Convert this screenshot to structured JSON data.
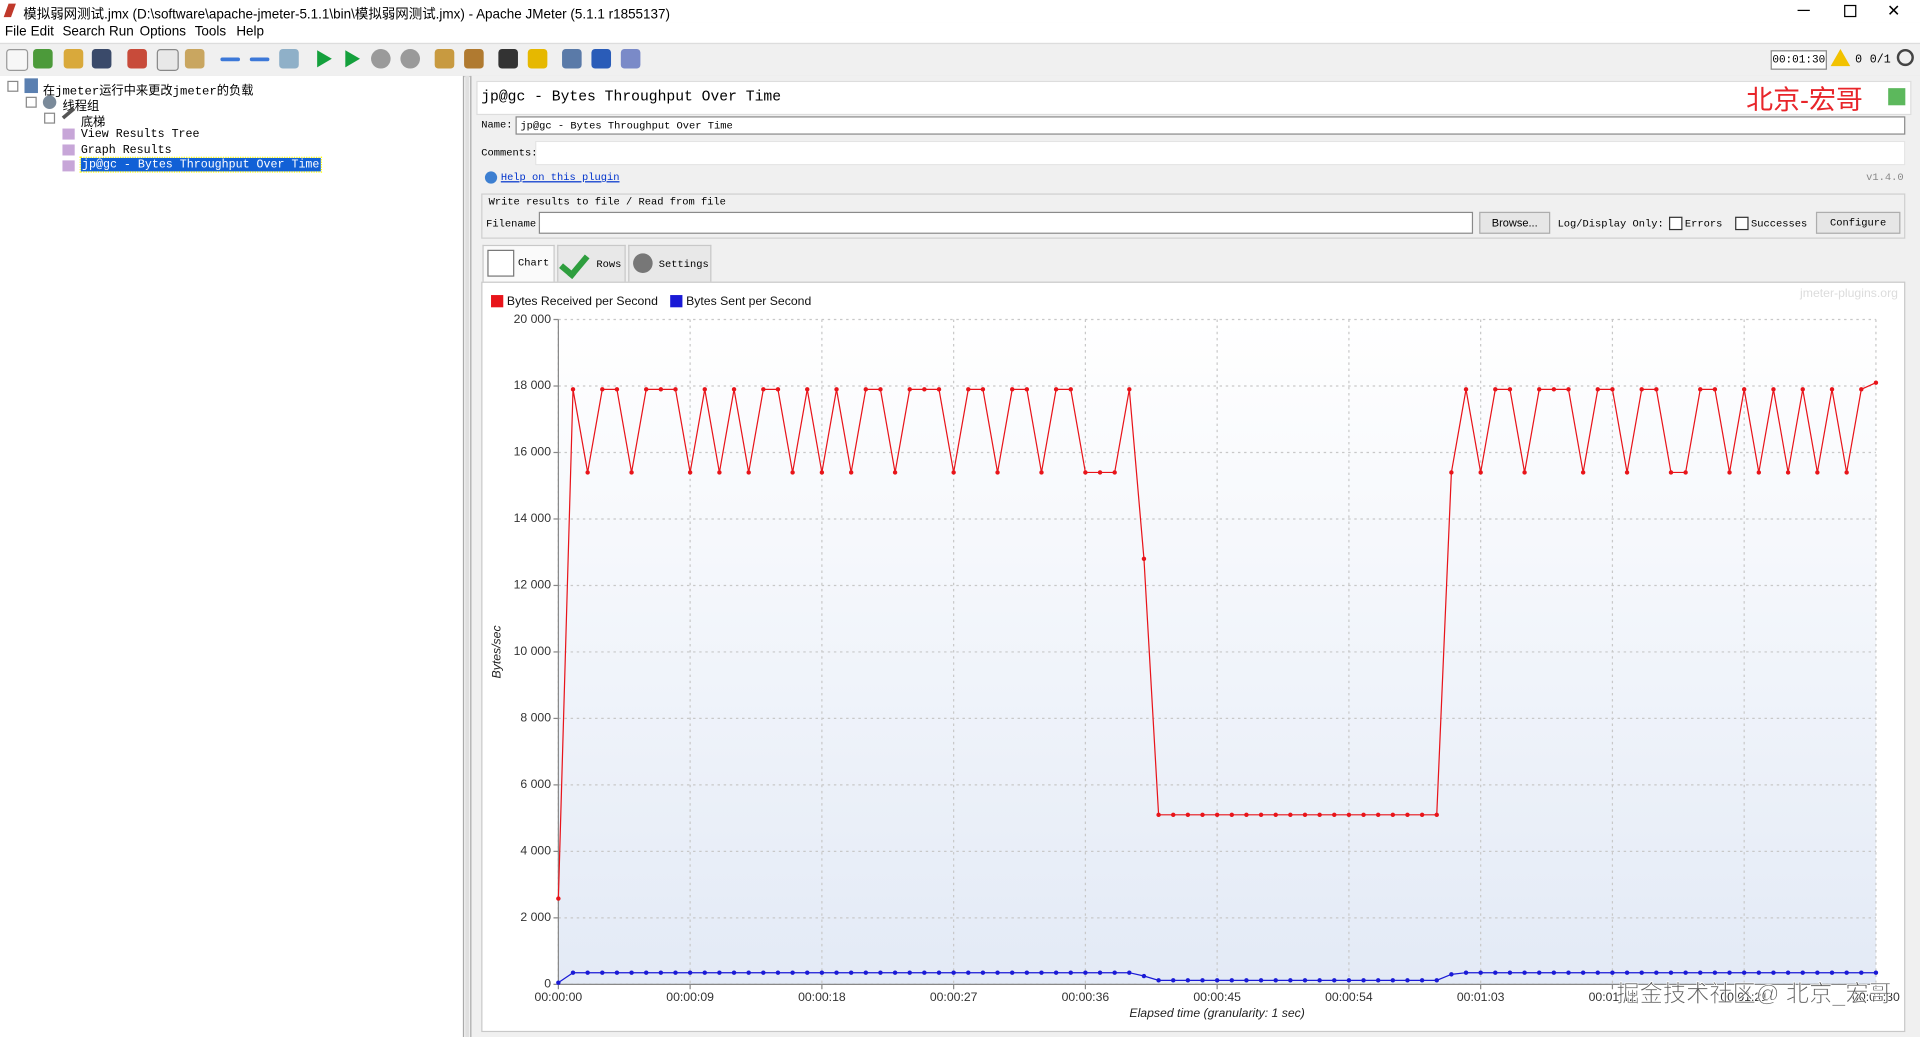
{
  "window": {
    "title": "模拟弱网测试.jmx (D:\\software\\apache-jmeter-5.1.1\\bin\\模拟弱网测试.jmx) - Apache JMeter (5.1.1 r1855137)",
    "menu": [
      "File",
      "Edit",
      "Search",
      "Run",
      "Options",
      "Tools",
      "Help"
    ]
  },
  "toolbar": {
    "timer": "00:01:30",
    "warnings": "0",
    "threads": "0/1"
  },
  "tree": {
    "items": [
      "在jmeter运行中来更改jmeter的负载",
      "线程组",
      "底梯",
      "View Results Tree",
      "Graph Results",
      "jp@gc - Bytes Throughput Over Time"
    ]
  },
  "panel": {
    "title": "jp@gc - Bytes Throughput Over Time",
    "watermark": "北京-宏哥",
    "name_label": "Name:",
    "name_value": "jp@gc - Bytes Throughput Over Time",
    "comments_label": "Comments:",
    "help_link": "Help on this plugin",
    "version": "v1.4.0",
    "file_section": "Write results to file / Read from file",
    "filename_label": "Filename",
    "browse": "Browse...",
    "log_display": "Log/Display Only:",
    "errors": "Errors",
    "successes": "Successes",
    "configure": "Configure",
    "tabs": [
      "Chart",
      "Rows",
      "Settings"
    ]
  },
  "chart_data": {
    "type": "line",
    "x_label": "Elapsed time (granularity: 1 sec)",
    "y_label": "Bytes/sec",
    "credit": "jmeter-plugins.org",
    "watermark": "掘金技术社区@ 北京_宏哥",
    "grid": true,
    "x": [
      0,
      1,
      2,
      3,
      4,
      5,
      6,
      7,
      8,
      9,
      10,
      11,
      12,
      13,
      14,
      15,
      16,
      17,
      18,
      19,
      20,
      21,
      22,
      23,
      24,
      25,
      26,
      27,
      28,
      29,
      30,
      31,
      32,
      33,
      34,
      35,
      36,
      37,
      38,
      39,
      40,
      41,
      42,
      43,
      44,
      45,
      46,
      47,
      48,
      49,
      50,
      51,
      52,
      53,
      54,
      55,
      56,
      57,
      58,
      59,
      60,
      61,
      62,
      63,
      64,
      65,
      66,
      67,
      68,
      69,
      70,
      71,
      72,
      73,
      74,
      75,
      76,
      77,
      78,
      79,
      80,
      81,
      82,
      83,
      84,
      85,
      86,
      87,
      88,
      89,
      90
    ],
    "series": [
      {
        "name": "Bytes Received per Second",
        "color": "#e8141a",
        "values": [
          2580,
          17900,
          15400,
          17900,
          17900,
          15400,
          17900,
          17900,
          17900,
          15400,
          17900,
          15400,
          17900,
          15400,
          17900,
          17900,
          15400,
          17900,
          15400,
          17900,
          15400,
          17900,
          17900,
          15400,
          17900,
          17900,
          17900,
          15400,
          17900,
          17900,
          15400,
          17900,
          17900,
          15400,
          17900,
          17900,
          15400,
          15400,
          15400,
          17900,
          12800,
          5100,
          5100,
          5100,
          5100,
          5100,
          5100,
          5100,
          5100,
          5100,
          5100,
          5100,
          5100,
          5100,
          5100,
          5100,
          5100,
          5100,
          5100,
          5100,
          5100,
          15400,
          17900,
          15400,
          17900,
          17900,
          15400,
          17900,
          17900,
          17900,
          15400,
          17900,
          17900,
          15400,
          17900,
          17900,
          15400,
          15400,
          17900,
          17900,
          15400,
          17900,
          15400,
          17900,
          15400,
          17900,
          15400,
          17900,
          15400,
          17900,
          18100
        ]
      },
      {
        "name": "Bytes Sent per Second",
        "color": "#1a1ad6",
        "values": [
          50,
          350,
          350,
          350,
          350,
          350,
          350,
          350,
          350,
          350,
          350,
          350,
          350,
          350,
          350,
          350,
          350,
          350,
          350,
          350,
          350,
          350,
          350,
          350,
          350,
          350,
          350,
          350,
          350,
          350,
          350,
          350,
          350,
          350,
          350,
          350,
          350,
          350,
          350,
          350,
          250,
          120,
          120,
          120,
          120,
          120,
          120,
          120,
          120,
          120,
          120,
          120,
          120,
          120,
          120,
          120,
          120,
          120,
          120,
          120,
          120,
          300,
          350,
          350,
          350,
          350,
          350,
          350,
          350,
          350,
          350,
          350,
          350,
          350,
          350,
          350,
          350,
          350,
          350,
          350,
          350,
          350,
          350,
          350,
          350,
          350,
          350,
          350,
          350,
          350,
          350
        ]
      }
    ],
    "xlim": [
      0,
      90
    ],
    "xticks": [
      {
        "value": 0,
        "label": "00:00:00"
      },
      {
        "value": 9,
        "label": "00:00:09"
      },
      {
        "value": 18,
        "label": "00:00:18"
      },
      {
        "value": 27,
        "label": "00:00:27"
      },
      {
        "value": 36,
        "label": "00:00:36"
      },
      {
        "value": 45,
        "label": "00:00:45"
      },
      {
        "value": 54,
        "label": "00:00:54"
      },
      {
        "value": 63,
        "label": "00:01:03"
      },
      {
        "value": 72,
        "label": "00:01:12"
      },
      {
        "value": 81,
        "label": "00:01:21"
      },
      {
        "value": 90,
        "label": "00:01:30"
      }
    ],
    "ylim": [
      0,
      20000
    ],
    "yticks": [
      0,
      {
        "value": 2000,
        "label": "2 000"
      },
      {
        "value": 4000,
        "label": "4 000"
      },
      {
        "value": 6000,
        "label": "6 000"
      },
      {
        "value": 8000,
        "label": "8 000"
      },
      {
        "value": 10000,
        "label": "10 000"
      },
      {
        "value": 12000,
        "label": "12 000"
      },
      {
        "value": 14000,
        "label": "14 000"
      },
      {
        "value": 16000,
        "label": "16 000"
      },
      {
        "value": 18000,
        "label": "18 000"
      },
      {
        "value": 20000,
        "label": "20 000"
      }
    ]
  }
}
